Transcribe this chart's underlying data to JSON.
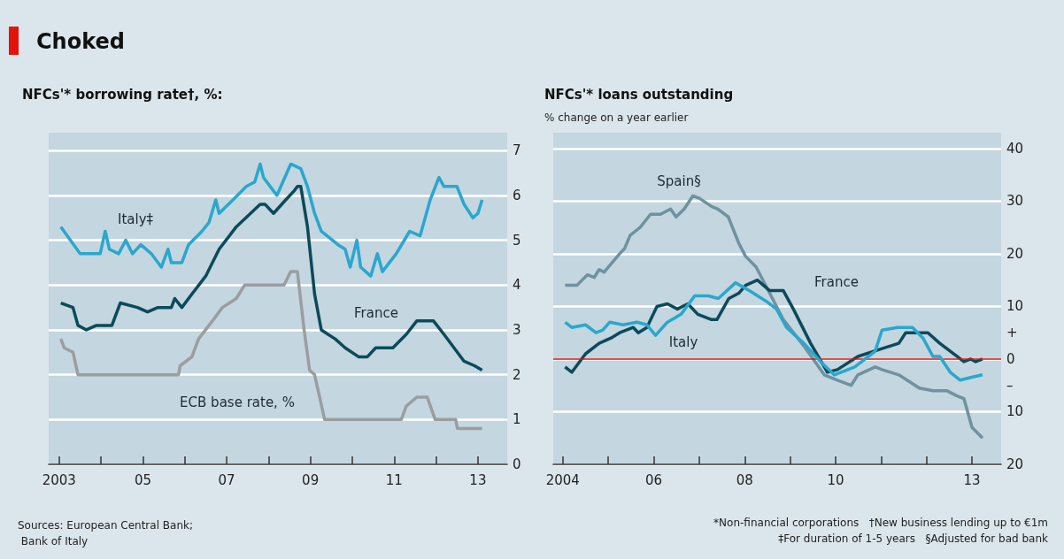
{
  "chart_data": [
    {
      "type": "line",
      "title": "Choked",
      "subtitle": "NFCs'* borrowing rate†, %:",
      "xlim": [
        2002.75,
        2013.7
      ],
      "xticks": [
        {
          "value": 2003,
          "label": "2003"
        },
        {
          "value": 2004,
          "label": null
        },
        {
          "value": 2005,
          "label": "05"
        },
        {
          "value": 2006,
          "label": null
        },
        {
          "value": 2007,
          "label": "07"
        },
        {
          "value": 2008,
          "label": null
        },
        {
          "value": 2009,
          "label": "09"
        },
        {
          "value": 2010,
          "label": null
        },
        {
          "value": 2011,
          "label": "11"
        },
        {
          "value": 2012,
          "label": null
        },
        {
          "value": 2013,
          "label": "13"
        }
      ],
      "ylim": [
        0,
        7.4
      ],
      "yticks": [
        0,
        1,
        2,
        3,
        4,
        5,
        6,
        7
      ],
      "grid": "y",
      "series": [
        {
          "name": "Italy‡",
          "color": "#2aa7cd",
          "x": [
            2003.04,
            2003.5,
            2003.65,
            2003.98,
            2004.1,
            2004.2,
            2004.42,
            2004.59,
            2004.75,
            2004.95,
            2005.2,
            2005.44,
            2005.6,
            2005.68,
            2005.93,
            2006.09,
            2006.41,
            2006.58,
            2006.74,
            2006.82,
            2007.15,
            2007.47,
            2007.67,
            2007.8,
            2007.88,
            2008.12,
            2008.2,
            2008.53,
            2008.77,
            2008.93,
            2009.1,
            2009.26,
            2009.66,
            2009.83,
            2009.95,
            2010.11,
            2010.2,
            2010.44,
            2010.6,
            2010.72,
            2011.05,
            2011.37,
            2011.62,
            2011.86,
            2012.07,
            2012.19,
            2012.5,
            2012.67,
            2012.88,
            2013.0,
            2013.1
          ],
          "values": [
            5.3,
            4.7,
            4.7,
            4.7,
            5.2,
            4.8,
            4.7,
            5.0,
            4.7,
            4.9,
            4.7,
            4.4,
            4.8,
            4.5,
            4.5,
            4.9,
            5.2,
            5.4,
            5.9,
            5.6,
            5.9,
            6.2,
            6.3,
            6.7,
            6.4,
            6.1,
            6.0,
            6.7,
            6.6,
            6.2,
            5.6,
            5.2,
            4.9,
            4.8,
            4.4,
            5.0,
            4.4,
            4.2,
            4.7,
            4.3,
            4.7,
            5.2,
            5.1,
            5.9,
            6.4,
            6.2,
            6.2,
            5.8,
            5.5,
            5.6,
            5.9
          ]
        },
        {
          "name": "France",
          "color": "#0b4a5a",
          "x": [
            2003.04,
            2003.33,
            2003.45,
            2003.65,
            2003.89,
            2004.26,
            2004.46,
            2004.87,
            2005.11,
            2005.36,
            2005.68,
            2005.76,
            2005.93,
            2006.17,
            2006.5,
            2006.82,
            2007.23,
            2007.8,
            2007.92,
            2008.12,
            2008.41,
            2008.61,
            2008.69,
            2008.77,
            2008.93,
            2009.1,
            2009.26,
            2009.42,
            2009.59,
            2009.83,
            2010.15,
            2010.36,
            2010.56,
            2010.97,
            2011.29,
            2011.54,
            2011.7,
            2011.94,
            2012.19,
            2012.43,
            2012.67,
            2012.92,
            2013.1
          ],
          "values": [
            3.6,
            3.5,
            3.1,
            3.0,
            3.1,
            3.1,
            3.6,
            3.5,
            3.4,
            3.5,
            3.5,
            3.7,
            3.5,
            3.8,
            4.2,
            4.8,
            5.3,
            5.8,
            5.8,
            5.6,
            5.9,
            6.1,
            6.2,
            6.2,
            5.3,
            3.8,
            3.0,
            2.9,
            2.8,
            2.6,
            2.4,
            2.4,
            2.6,
            2.6,
            2.9,
            3.2,
            3.2,
            3.2,
            2.9,
            2.6,
            2.3,
            2.2,
            2.1
          ]
        },
        {
          "name": "ECB base rate, %",
          "color": "#9a9ea1",
          "x": [
            2003.04,
            2003.12,
            2003.33,
            2003.45,
            2005.85,
            2005.89,
            2006.17,
            2006.33,
            2006.66,
            2006.9,
            2007.23,
            2007.43,
            2008.37,
            2008.53,
            2008.69,
            2008.85,
            2008.98,
            2009.1,
            2009.34,
            2011.17,
            2011.29,
            2011.54,
            2011.79,
            2011.98,
            2012.47,
            2012.51,
            2013.1
          ],
          "values": [
            2.8,
            2.6,
            2.5,
            2.0,
            2.0,
            2.2,
            2.4,
            2.8,
            3.2,
            3.5,
            3.7,
            4.0,
            4.0,
            4.3,
            4.3,
            3.0,
            2.1,
            2.0,
            1.0,
            1.0,
            1.3,
            1.5,
            1.5,
            1.0,
            1.0,
            0.8,
            0.8
          ]
        }
      ],
      "annotations": [
        "Sources: European Central Bank; Bank of Italy"
      ]
    },
    {
      "type": "line",
      "title": "NFCs'* loans outstanding",
      "subtitle": "% change on a year earlier",
      "xlim": [
        2003.79,
        2013.64
      ],
      "xticks": [
        {
          "value": 2004,
          "label": "2004"
        },
        {
          "value": 2005,
          "label": null
        },
        {
          "value": 2006,
          "label": "06"
        },
        {
          "value": 2007,
          "label": null
        },
        {
          "value": 2008,
          "label": "08"
        },
        {
          "value": 2009,
          "label": null
        },
        {
          "value": 2010,
          "label": "10"
        },
        {
          "value": 2011,
          "label": null
        },
        {
          "value": 2012,
          "label": null
        },
        {
          "value": 2013,
          "label": "13"
        }
      ],
      "ylim": [
        -20,
        43
      ],
      "yticks": [
        {
          "value": -20,
          "label": "20"
        },
        {
          "value": -10,
          "label": "10"
        },
        {
          "value": -5,
          "label": "–"
        },
        0,
        {
          "value": 5,
          "label": "+"
        },
        10,
        20,
        30,
        40
      ],
      "grid": "y",
      "ref_lines": [
        {
          "axis": "y",
          "value": 0,
          "label": null,
          "color": "#e3120b"
        }
      ],
      "series": [
        {
          "name": "Spain§",
          "color": "#6f929f",
          "x": [
            2004.05,
            2004.31,
            2004.54,
            2004.69,
            2004.8,
            2004.91,
            2005.25,
            2005.36,
            2005.48,
            2005.7,
            2005.93,
            2006.15,
            2006.37,
            2006.49,
            2006.67,
            2006.86,
            2007.01,
            2007.27,
            2007.41,
            2007.64,
            2007.87,
            2008.02,
            2008.25,
            2008.55,
            2008.85,
            2009.3,
            2009.75,
            2010.04,
            2010.34,
            2010.49,
            2010.87,
            2011.02,
            2011.39,
            2011.84,
            2012.14,
            2012.44,
            2012.67,
            2012.82,
            2013.0,
            2013.23
          ],
          "values": [
            14,
            14,
            16,
            15.5,
            17,
            16.5,
            20,
            21,
            23.5,
            25,
            27.5,
            27.5,
            28.5,
            27,
            28.5,
            31,
            30.5,
            29,
            28.5,
            27,
            22,
            19.5,
            17.5,
            12.5,
            7.5,
            2.5,
            -3,
            -4,
            -5,
            -3,
            -1.5,
            -2,
            -3,
            -5.5,
            -6,
            -6,
            -7,
            -7.5,
            -13,
            -15
          ]
        },
        {
          "name": "France",
          "color": "#0b4a5a",
          "x": [
            2004.05,
            2004.2,
            2004.5,
            2004.8,
            2005.06,
            2005.25,
            2005.55,
            2005.66,
            2005.85,
            2006.07,
            2006.3,
            2006.52,
            2006.75,
            2006.97,
            2007.27,
            2007.39,
            2007.65,
            2007.87,
            2008.02,
            2008.28,
            2008.55,
            2008.85,
            2009.07,
            2009.45,
            2009.82,
            2010.04,
            2010.49,
            2011.02,
            2011.39,
            2011.54,
            2012.03,
            2012.29,
            2012.67,
            2012.82,
            2012.97,
            2013.08,
            2013.23
          ],
          "values": [
            -1.5,
            -2.5,
            1,
            3,
            4,
            5,
            6,
            5,
            6,
            10,
            10.5,
            9.5,
            10.5,
            8.5,
            7.5,
            7.5,
            11.5,
            12.5,
            14,
            15,
            13,
            13,
            9.5,
            3,
            -2.5,
            -2,
            0.5,
            2,
            3,
            5,
            5,
            3,
            0.5,
            -0.5,
            0,
            -0.5,
            0
          ]
        },
        {
          "name": "Italy",
          "color": "#2aa7cd",
          "x": [
            2004.05,
            2004.2,
            2004.5,
            2004.73,
            2004.88,
            2005.03,
            2005.33,
            2005.63,
            2005.85,
            2006.04,
            2006.3,
            2006.6,
            2006.9,
            2007.2,
            2007.42,
            2007.8,
            2008.1,
            2008.47,
            2008.7,
            2008.92,
            2009.3,
            2009.67,
            2009.97,
            2010.42,
            2010.87,
            2011.02,
            2011.36,
            2011.69,
            2011.92,
            2012.14,
            2012.29,
            2012.52,
            2012.74,
            2012.97,
            2013.23
          ],
          "values": [
            7,
            6,
            6.5,
            5,
            5.5,
            7,
            6.5,
            7,
            6.5,
            4.5,
            7,
            8.5,
            12,
            12,
            11.5,
            14.5,
            13,
            11,
            9.5,
            6,
            3,
            -0.5,
            -3,
            -1.5,
            1.5,
            5.5,
            6,
            6,
            4,
            0.5,
            0.5,
            -2.5,
            -4,
            -3.5,
            -3
          ]
        }
      ],
      "annotations": [
        "*Non-financial corporations   †New business lending up to €1m",
        "‡For duration of 1-5 years   §Adjusted for bad bank"
      ]
    }
  ]
}
